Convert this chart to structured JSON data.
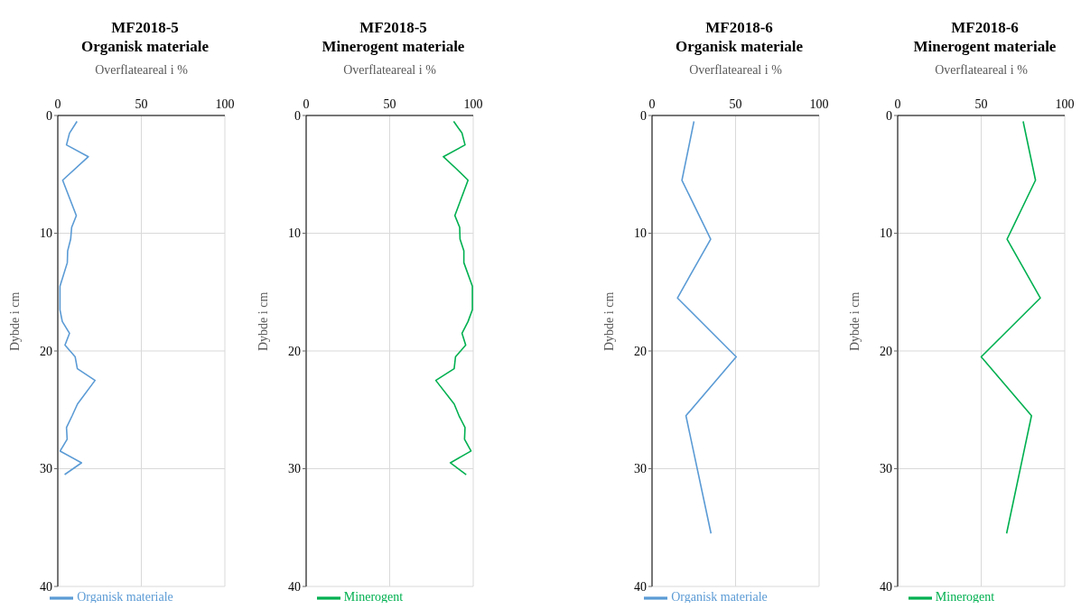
{
  "chart_data": [
    {
      "type": "line",
      "title": "MF2018-5\nOrganisk materiale",
      "xlabel": "Overflateareal i %",
      "ylabel": "Dybde i cm",
      "xlim": [
        0,
        100
      ],
      "xticks": [
        0,
        50,
        100
      ],
      "ylim": [
        40,
        0
      ],
      "yticks": [
        0,
        10,
        20,
        30,
        40
      ],
      "grid": true,
      "legend": "bottom",
      "series": [
        {
          "name": "Organisk materiale",
          "color": "#5b9bd5",
          "x": [
            11.5,
            7.0,
            5.2,
            18.3,
            2.9,
            11.1,
            8.3,
            7.7,
            5.9,
            5.7,
            1.3,
            1.3,
            2.7,
            7.0,
            4.3,
            10.4,
            11.7,
            22.3,
            11.8,
            8.6,
            5.2,
            5.6,
            1.4,
            14.2,
            4.1
          ],
          "values": [
            0.5,
            1.5,
            2.5,
            3.5,
            5.5,
            8.5,
            9.5,
            10.5,
            11.5,
            12.5,
            14.5,
            16.5,
            17.5,
            18.5,
            19.5,
            20.5,
            21.5,
            22.5,
            24.5,
            25.5,
            26.5,
            27.5,
            28.5,
            29.5,
            30.5
          ]
        }
      ]
    },
    {
      "type": "line",
      "title": "MF2018-5\nMinerogent materiale",
      "xlabel": "Overflateareal i %",
      "ylabel": "Dybde i cm",
      "xlim": [
        0,
        100
      ],
      "xticks": [
        0,
        50,
        100
      ],
      "ylim": [
        40,
        0
      ],
      "yticks": [
        0,
        10,
        20,
        30,
        40
      ],
      "grid": true,
      "legend": "bottom",
      "series": [
        {
          "name": "Minerogent",
          "color": "#00b050",
          "x": [
            88.3,
            93.3,
            95.1,
            82.1,
            89.7,
            96.9,
            89.0,
            91.9,
            92.1,
            94.4,
            94.4,
            99.5,
            99.5,
            96.9,
            93.3,
            95.5,
            89.4,
            88.6,
            77.6,
            88.6,
            91.5,
            95.1,
            94.8,
            98.7,
            86.3,
            95.8
          ],
          "values": [
            0.5,
            1.5,
            2.5,
            3.5,
            4.5,
            5.5,
            8.5,
            9.5,
            10.5,
            11.5,
            12.5,
            14.5,
            16.5,
            17.5,
            18.5,
            19.5,
            20.5,
            21.5,
            22.5,
            24.5,
            25.5,
            26.5,
            27.5,
            28.5,
            29.5,
            30.5
          ]
        }
      ]
    },
    {
      "type": "line",
      "title": "MF2018-6\nOrganisk materiale",
      "xlabel": "Overflateareal i %",
      "ylabel": "Dybde i cm",
      "xlim": [
        0,
        100
      ],
      "xticks": [
        0,
        50,
        100
      ],
      "ylim": [
        40,
        0
      ],
      "yticks": [
        0,
        10,
        20,
        30,
        40
      ],
      "grid": true,
      "legend": "bottom",
      "series": [
        {
          "name": "Organisk materiale",
          "color": "#5b9bd5",
          "x": [
            25.1,
            17.9,
            35.1,
            15.2,
            50.4,
            20.3,
            35.3
          ],
          "values": [
            0.5,
            5.5,
            10.5,
            15.5,
            20.5,
            25.5,
            35.5
          ]
        }
      ]
    },
    {
      "type": "line",
      "title": "MF2018-6\nMinerogent materiale",
      "xlabel": "Overflateareal i %",
      "ylabel": "Dybde i cm",
      "xlim": [
        0,
        100
      ],
      "xticks": [
        0,
        50,
        100
      ],
      "ylim": [
        40,
        0
      ],
      "yticks": [
        0,
        10,
        20,
        30,
        40
      ],
      "grid": true,
      "legend": "bottom",
      "series": [
        {
          "name": "Minerogent",
          "color": "#00b050",
          "x": [
            75.1,
            82.5,
            65.5,
            85.4,
            50.0,
            80.1,
            65.2
          ],
          "values": [
            0.5,
            5.5,
            10.5,
            15.5,
            20.5,
            25.5,
            35.5
          ]
        }
      ]
    }
  ]
}
